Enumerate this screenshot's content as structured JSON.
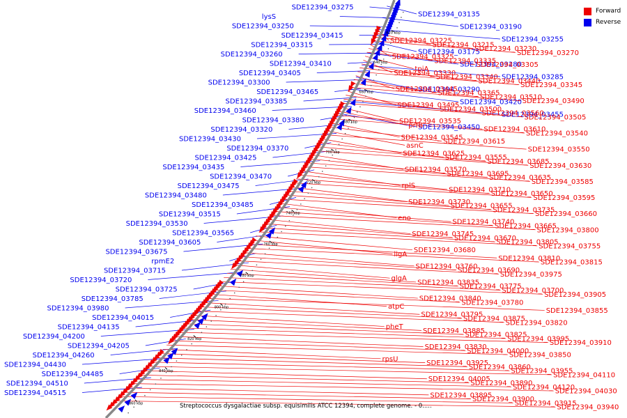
{
  "colors": {
    "forward": "#ee0000",
    "reverse": "#0000ee",
    "backbone": "#888888",
    "ticks": "#000000"
  },
  "legend": {
    "forward_label": "Forward",
    "reverse_label": "Reverse"
  },
  "caption": "Streptococcus dysgalactiae subsp. equisimilis ATCC 12394, complete genome. - 0.....",
  "ticks": [
    "620 kbp",
    "640 kbp",
    "660 kbp",
    "680 kbp",
    "700 kbp",
    "720 kbp",
    "740 kbp",
    "760 kbp",
    "780 kbp",
    "800 kbp",
    "820 kbp",
    "840 kbp",
    "860 kbp"
  ],
  "labels": {
    "reverse": [
      "SDE12394_03275",
      "lysS",
      "SDE12394_03250",
      "SDE12394_03415",
      "SDE12394_03315",
      "SDE12394_03260",
      "SDE12394_03410",
      "SDE12394_03405",
      "SDE12394_03300",
      "SDE12394_03465",
      "SDE12394_03385",
      "SDE12394_03460",
      "SDE12394_03380",
      "SDE12394_03320",
      "SDE12394_03430",
      "SDE12394_03370",
      "SDE12394_03425",
      "SDE12394_03435",
      "SDE12394_03470",
      "SDE12394_03475",
      "SDE12394_03480",
      "SDE12394_03485",
      "SDE12394_03515",
      "SDE12394_03530",
      "SDE12394_03565",
      "SDE12394_03605",
      "SDE12394_03675",
      "rpmE2",
      "SDE12394_03715",
      "SDE12394_03720",
      "SDE12394_03725",
      "SDE12394_03785",
      "SDE12394_03980",
      "SDE12394_04015",
      "SDE12394_04135",
      "SDE12394_04200",
      "SDE12394_04205",
      "SDE12394_04260",
      "SDE12394_04430",
      "SDE12394_04485",
      "SDE12394_04510",
      "SDE12394_04515",
      "SDE12394_03135",
      "SDE12394_03190",
      "SDE12394_03255",
      "SDE12394_03175",
      "SDE12394_03280",
      "SDE12394_03285",
      "SDE12394_03290",
      "SDE12394_03420",
      "SDE12394_03455",
      "SDE12394_03450"
    ],
    "forward": [
      "SDE12394_03225",
      "SDE12394_03215",
      "SDE12394_03230",
      "SDE12394_03270",
      "SDE12394_03325",
      "SDE12394_03335",
      "SDE12394_03305",
      "tpiA",
      "SDE12394_03330",
      "SDE12394_03340",
      "SDE12394_03440",
      "SDE12394_03345",
      "SDE12394_03445",
      "SDE12394_03365",
      "SDE12394_03510",
      "SDE12394_03490",
      "SDE12394_03495",
      "SDE12394_03500",
      "SDE12394_03560",
      "SDE12394_03505",
      "SDE12394_03535",
      "prfB",
      "SDE12394_03610",
      "SDE12394_03540",
      "SDE12394_03545",
      "SDE12394_03615",
      "asnC",
      "SDE12394_03550",
      "SDE12394_03625",
      "SDE12394_03555",
      "SDE12394_03685",
      "SDE12394_03630",
      "SDE12394_03570",
      "SDE12394_03695",
      "SDE12394_03635",
      "SDE12394_03585",
      "rplS",
      "SDE12394_03710",
      "SDE12394_03650",
      "SDE12394_03595",
      "SDE12394_03730",
      "SDE12394_03655",
      "SDE12394_03735",
      "SDE12394_03660",
      "eno",
      "SDE12394_03740",
      "SDE12394_03665",
      "SDE12394_03800",
      "SDE12394_03745",
      "SDE12394_03670",
      "SDE12394_03805",
      "SDE12394_03755",
      "SDE12394_03680",
      "ligA",
      "SDE12394_03810",
      "SDE12394_03815",
      "SDE12394_03760",
      "SDE12394_03690",
      "SDE12394_03975",
      "glgA",
      "SDE12394_03835",
      "SDE12394_03775",
      "SDE12394_03700",
      "SDE12394_03905",
      "SDE12394_03840",
      "SDE12394_03780",
      "atpC",
      "SDE12394_03855",
      "SDE12394_03795",
      "SDE12394_03875",
      "SDE12394_03820",
      "pheT",
      "SDE12394_03885",
      "SDE12394_03825",
      "SDE12394_03995",
      "SDE12394_03910",
      "SDE12394_03830",
      "SDE12394_04000",
      "SDE12394_03850",
      "rpsU",
      "SDE12394_03925",
      "SDE12394_03860",
      "SDE12394_03955",
      "SDE12394_04110",
      "SDE12394_04005",
      "SDE12394_03890",
      "SDE12394_04120",
      "SDE12394_04030",
      "SDE12394_03895",
      "SDE12394_03900",
      "SDE12394_03915",
      "SDE12394_03940"
    ]
  }
}
